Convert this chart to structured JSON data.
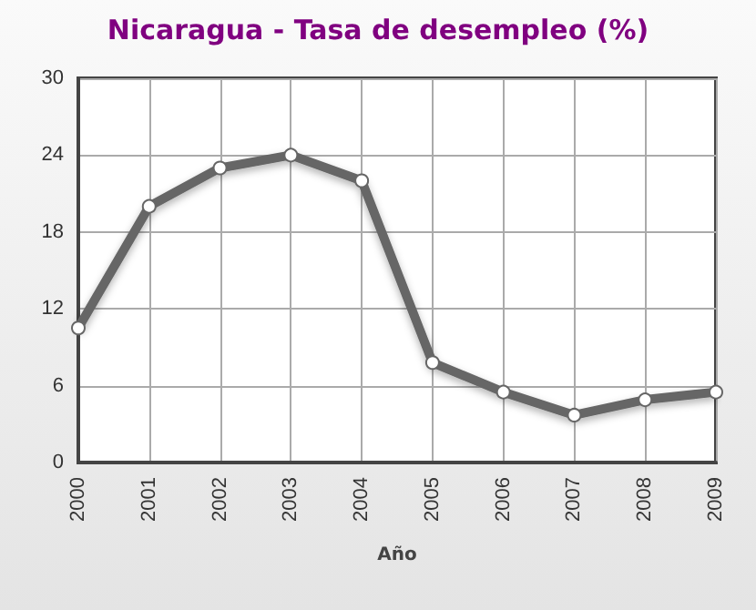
{
  "chart_data": {
    "type": "line",
    "title": "Nicaragua - Tasa de desempleo (%)",
    "xlabel": "Año",
    "categories": [
      "2000",
      "2001",
      "2002",
      "2003",
      "2004",
      "2005",
      "2006",
      "2007",
      "2008",
      "2009"
    ],
    "series": [
      {
        "color": "#666666",
        "values": [
          10.5,
          20.0,
          23.0,
          24.0,
          22.0,
          7.8,
          5.5,
          3.7,
          4.9,
          5.5
        ]
      }
    ],
    "ylim": [
      0,
      30
    ],
    "yticks": [
      0,
      6,
      12,
      18,
      24,
      30
    ],
    "grid": true,
    "marker": "circle",
    "line_style": "solid"
  }
}
